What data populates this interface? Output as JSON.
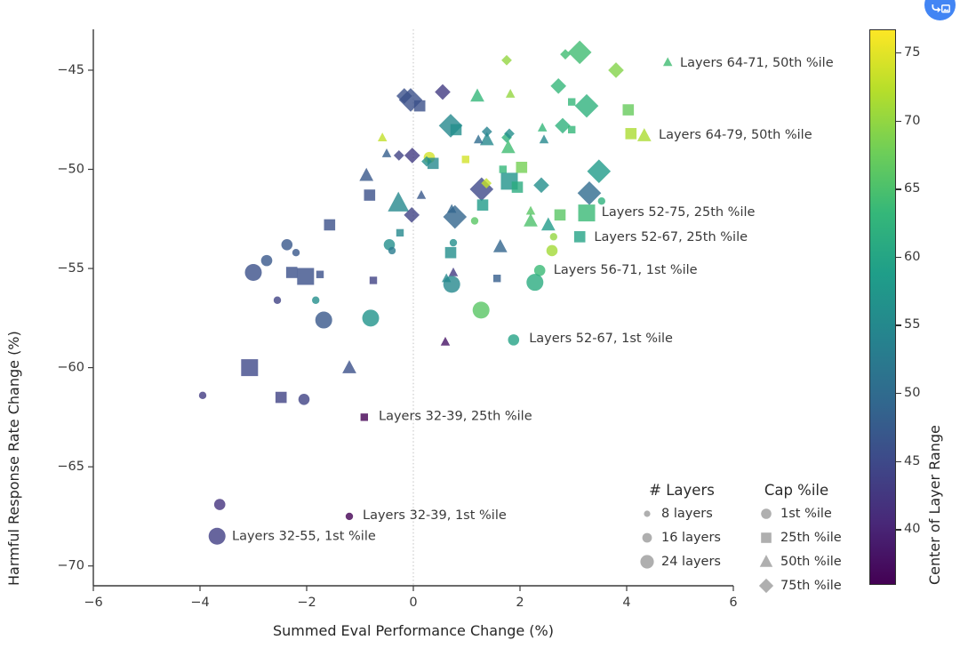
{
  "export_button": {
    "icon": "share-to-image-icon",
    "color": "#4285f4"
  },
  "chart_data": {
    "type": "scatter",
    "title": "",
    "xlabel": "Summed Eval Performance Change (%)",
    "ylabel": "Harmful Response Rate Change (%)",
    "xlim": [
      -6,
      6
    ],
    "ylim": [
      -71.0,
      -42.94
    ],
    "xticks": [
      -6,
      -4,
      -2,
      0,
      2,
      4,
      6
    ],
    "xtick_labels": [
      "−6",
      "−4",
      "−2",
      "0",
      "2",
      "4",
      "6"
    ],
    "yticks": [
      -45,
      -50,
      -55,
      -60,
      -65,
      -70
    ],
    "ytick_labels": [
      "−45",
      "−50",
      "−55",
      "−60",
      "−65",
      "−70"
    ],
    "grid": false,
    "refline_x": 0,
    "colorbar": {
      "label": "Center of Layer Range",
      "colormap": "viridis",
      "vmin": 35.9,
      "vmax": 76.7,
      "ticks": [
        40,
        45,
        50,
        55,
        60,
        65,
        70,
        75
      ]
    },
    "legend": {
      "size_title": "# Layers",
      "sizes": [
        {
          "label": "8 layers",
          "n": 8
        },
        {
          "label": "16 layers",
          "n": 16
        },
        {
          "label": "24 layers",
          "n": 24
        }
      ],
      "shape_title": "Cap %ile",
      "shapes": [
        {
          "label": "1st %ile",
          "cap": 1
        },
        {
          "label": "25th %ile",
          "cap": 25
        },
        {
          "label": "50th %ile",
          "cap": 50
        },
        {
          "label": "75th %ile",
          "cap": 75
        }
      ]
    },
    "points_schema": [
      "summed_eval_change_pct",
      "harmful_rate_change_pct",
      "center_of_layer_range",
      "cap_percentile",
      "num_layers"
    ],
    "points": [
      [
        0.55,
        -46.1,
        43,
        75,
        16
      ],
      [
        -0.05,
        -46.5,
        46,
        75,
        24
      ],
      [
        -0.17,
        -46.3,
        46,
        75,
        16
      ],
      [
        0.12,
        -46.8,
        46,
        25,
        16
      ],
      [
        1.2,
        -46.3,
        63,
        50,
        16
      ],
      [
        1.82,
        -46.2,
        70,
        50,
        8
      ],
      [
        0.7,
        -47.8,
        55,
        75,
        24
      ],
      [
        0.8,
        -48.0,
        56,
        25,
        16
      ],
      [
        1.38,
        -48.1,
        54,
        75,
        8
      ],
      [
        1.38,
        -48.5,
        55,
        50,
        16
      ],
      [
        1.22,
        -48.5,
        50,
        50,
        8
      ],
      [
        1.75,
        -48.4,
        62,
        75,
        8
      ],
      [
        1.78,
        -48.9,
        64,
        50,
        16
      ],
      [
        -0.58,
        -48.4,
        73,
        50,
        8
      ],
      [
        -0.5,
        -49.2,
        48,
        50,
        8
      ],
      [
        -0.02,
        -49.3,
        43,
        75,
        16
      ],
      [
        -0.27,
        -49.3,
        44,
        75,
        8
      ],
      [
        0.3,
        -49.4,
        74,
        1,
        16
      ],
      [
        0.37,
        -49.7,
        55,
        25,
        16
      ],
      [
        0.25,
        -49.6,
        56,
        75,
        8
      ],
      [
        0.98,
        -49.5,
        74,
        25,
        8
      ],
      [
        -0.88,
        -50.3,
        47,
        50,
        16
      ],
      [
        1.68,
        -50.0,
        63,
        25,
        8
      ],
      [
        2.03,
        -49.9,
        68,
        25,
        16
      ],
      [
        1.8,
        -50.6,
        57,
        25,
        24
      ],
      [
        1.95,
        -50.9,
        61,
        25,
        16
      ],
      [
        1.28,
        -51.0,
        45,
        75,
        24
      ],
      [
        1.37,
        -50.7,
        73,
        75,
        8
      ],
      [
        -0.82,
        -51.3,
        46,
        25,
        16
      ],
      [
        -0.28,
        -51.7,
        55,
        50,
        24
      ],
      [
        1.3,
        -51.8,
        58,
        25,
        16
      ],
      [
        0.72,
        -52.0,
        49,
        50,
        8
      ],
      [
        0.15,
        -51.3,
        47,
        50,
        8
      ],
      [
        1.75,
        -44.5,
        70,
        75,
        8
      ],
      [
        3.12,
        -44.1,
        64,
        75,
        24
      ],
      [
        2.85,
        -44.2,
        64,
        75,
        8
      ],
      [
        3.8,
        -45.0,
        69,
        75,
        16
      ],
      [
        2.72,
        -45.8,
        63,
        75,
        16
      ],
      [
        2.97,
        -46.6,
        63,
        25,
        8
      ],
      [
        3.25,
        -46.8,
        62,
        75,
        24
      ],
      [
        4.03,
        -47.0,
        67,
        25,
        16
      ],
      [
        1.8,
        -48.2,
        56,
        75,
        8
      ],
      [
        2.42,
        -47.9,
        63,
        50,
        8
      ],
      [
        2.45,
        -48.5,
        55,
        50,
        8
      ],
      [
        2.8,
        -47.8,
        62,
        75,
        16
      ],
      [
        2.97,
        -48.0,
        63,
        25,
        8
      ],
      [
        4.08,
        -48.2,
        71.5,
        25,
        16
      ],
      [
        4.33,
        -48.3,
        71.5,
        50,
        16
      ],
      [
        4.77,
        -44.6,
        64,
        50,
        8
      ],
      [
        3.48,
        -50.1,
        58,
        75,
        24
      ],
      [
        2.4,
        -50.8,
        56,
        75,
        16
      ],
      [
        3.3,
        -51.2,
        50,
        75,
        24
      ],
      [
        3.53,
        -51.6,
        62,
        1,
        8
      ],
      [
        2.75,
        -52.3,
        66,
        25,
        16
      ],
      [
        3.25,
        -52.2,
        63.5,
        25,
        24
      ],
      [
        2.53,
        -52.8,
        58,
        50,
        16
      ],
      [
        2.63,
        -53.4,
        70,
        1,
        8
      ],
      [
        3.12,
        -53.4,
        59.5,
        25,
        16
      ],
      [
        0.78,
        -52.4,
        49,
        75,
        24
      ],
      [
        1.15,
        -52.6,
        66,
        1,
        8
      ],
      [
        2.2,
        -52.1,
        66,
        50,
        8
      ],
      [
        2.2,
        -52.6,
        65,
        50,
        16
      ],
      [
        1.63,
        -53.9,
        49,
        50,
        16
      ],
      [
        2.6,
        -54.1,
        71,
        1,
        16
      ],
      [
        0.7,
        -54.2,
        56,
        25,
        16
      ],
      [
        0.75,
        -53.7,
        56,
        1,
        8
      ],
      [
        0.75,
        -55.2,
        43,
        50,
        8
      ],
      [
        0.62,
        -55.5,
        55,
        50,
        8
      ],
      [
        0.72,
        -55.8,
        55,
        1,
        24
      ],
      [
        1.57,
        -55.5,
        48,
        25,
        8
      ],
      [
        2.37,
        -55.1,
        63.5,
        1,
        16
      ],
      [
        2.28,
        -55.7,
        61,
        1,
        24
      ],
      [
        1.27,
        -57.1,
        66,
        1,
        24
      ],
      [
        0.6,
        -58.7,
        38,
        50,
        8
      ],
      [
        1.88,
        -58.6,
        59.5,
        1,
        16
      ],
      [
        -2.37,
        -53.8,
        47,
        1,
        16
      ],
      [
        -2.2,
        -54.2,
        47,
        1,
        8
      ],
      [
        -0.45,
        -53.8,
        56,
        1,
        16
      ],
      [
        -0.4,
        -54.1,
        53,
        1,
        8
      ],
      [
        -2.75,
        -54.6,
        47,
        1,
        16
      ],
      [
        -3.0,
        -55.2,
        46,
        1,
        24
      ],
      [
        -2.28,
        -55.2,
        46,
        25,
        16
      ],
      [
        -2.02,
        -55.4,
        46,
        25,
        24
      ],
      [
        -1.75,
        -55.3,
        46,
        25,
        8
      ],
      [
        -0.75,
        -55.6,
        44,
        25,
        8
      ],
      [
        -2.55,
        -56.6,
        44,
        1,
        8
      ],
      [
        -1.83,
        -56.6,
        56,
        1,
        8
      ],
      [
        -1.68,
        -57.6,
        47,
        1,
        24
      ],
      [
        -0.8,
        -57.5,
        57,
        1,
        24
      ],
      [
        -3.07,
        -60.0,
        45,
        25,
        24
      ],
      [
        -1.2,
        -60.0,
        46,
        50,
        16
      ],
      [
        -3.95,
        -61.4,
        43,
        1,
        8
      ],
      [
        -2.48,
        -61.5,
        44,
        25,
        16
      ],
      [
        -2.05,
        -61.6,
        44,
        1,
        16
      ],
      [
        -0.92,
        -62.5,
        35.5,
        25,
        8
      ],
      [
        -3.63,
        -66.9,
        42,
        1,
        16
      ],
      [
        -3.68,
        -68.5,
        43.5,
        1,
        24
      ],
      [
        -1.2,
        -67.5,
        35.5,
        1,
        8
      ],
      [
        -0.03,
        -52.3,
        44,
        75,
        16
      ],
      [
        -1.57,
        -52.8,
        46,
        25,
        16
      ],
      [
        -0.25,
        -53.2,
        55,
        25,
        8
      ]
    ],
    "annotations": [
      {
        "x": 5.0,
        "y": -44.64,
        "label": "Layers 64-71, 50th %ile"
      },
      {
        "x": 4.6,
        "y": -48.27,
        "label": "Layers 64-79, 50th %ile"
      },
      {
        "x": 3.53,
        "y": -52.17,
        "label": "Layers 52-75, 25th %ile"
      },
      {
        "x": 3.39,
        "y": -53.42,
        "label": "Layers 52-67, 25th %ile"
      },
      {
        "x": 2.63,
        "y": -55.08,
        "label": "Layers 56-71, 1st %ile"
      },
      {
        "x": 2.17,
        "y": -58.55,
        "label": "Layers 52-67, 1st %ile"
      },
      {
        "x": -0.65,
        "y": -62.47,
        "label": "Layers 32-39, 25th %ile"
      },
      {
        "x": -0.95,
        "y": -67.45,
        "label": "Layers 32-39, 1st %ile"
      },
      {
        "x": -3.4,
        "y": -68.52,
        "label": "Layers 32-55, 1st %ile"
      }
    ]
  }
}
